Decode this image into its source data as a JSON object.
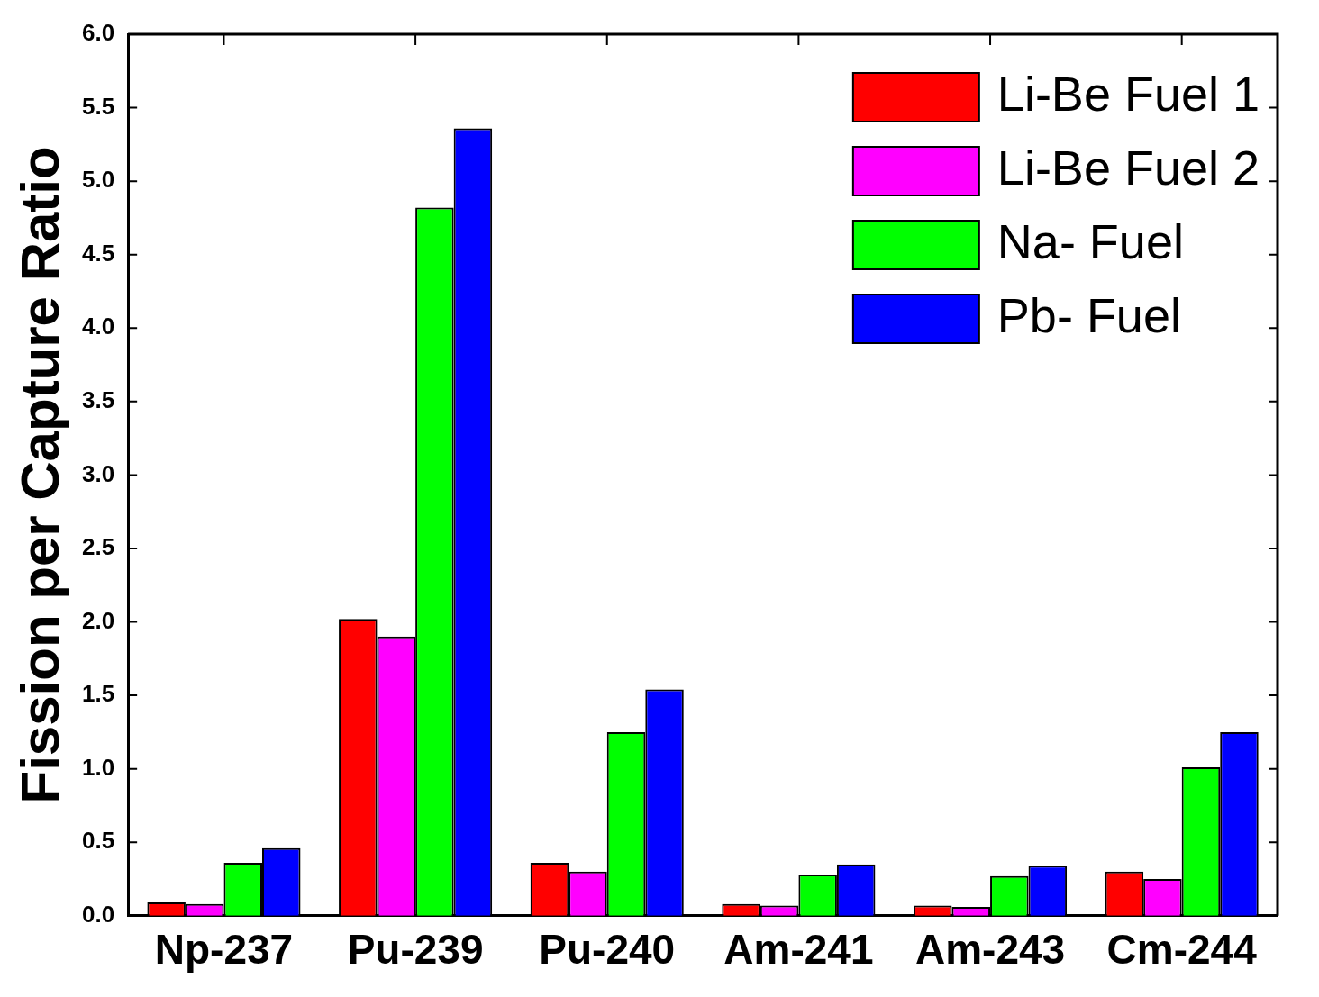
{
  "chart_data": {
    "type": "bar",
    "ylabel": "Fission per Capture Ratio",
    "categories": [
      "Np-237",
      "Pu-239",
      "Pu-240",
      "Am-241",
      "Am-243",
      "Cm-244"
    ],
    "series": [
      {
        "name": "Li-Be Fuel 1",
        "color": "#ff0000",
        "values": [
          0.09,
          2.02,
          0.36,
          0.08,
          0.07,
          0.3
        ]
      },
      {
        "name": "Li-Be Fuel 2",
        "color": "#ff00ff",
        "values": [
          0.08,
          1.9,
          0.3,
          0.07,
          0.06,
          0.25
        ]
      },
      {
        "name": "Na- Fuel",
        "color": "#00ff00",
        "values": [
          0.36,
          4.82,
          1.25,
          0.28,
          0.27,
          1.01
        ]
      },
      {
        "name": "Pb- Fuel",
        "color": "#0000ff",
        "values": [
          0.46,
          5.36,
          1.54,
          0.35,
          0.34,
          1.25
        ]
      }
    ],
    "ylim": [
      0,
      6
    ],
    "yticks": [
      {
        "value": 0,
        "label": "0.0"
      },
      {
        "value": 0.5,
        "label": "0.5"
      },
      {
        "value": 1,
        "label": "1.0"
      },
      {
        "value": 1.5,
        "label": "1.5"
      },
      {
        "value": 2,
        "label": "2.0"
      },
      {
        "value": 2.5,
        "label": "2.5"
      },
      {
        "value": 3,
        "label": "3.0"
      },
      {
        "value": 3.5,
        "label": "3.5"
      },
      {
        "value": 4,
        "label": "4.0"
      },
      {
        "value": 4.5,
        "label": "4.5"
      },
      {
        "value": 5,
        "label": "5.0"
      },
      {
        "value": 5.5,
        "label": "5.5"
      },
      {
        "value": 6,
        "label": "6.0"
      }
    ],
    "grid": false,
    "legend": "top right"
  }
}
